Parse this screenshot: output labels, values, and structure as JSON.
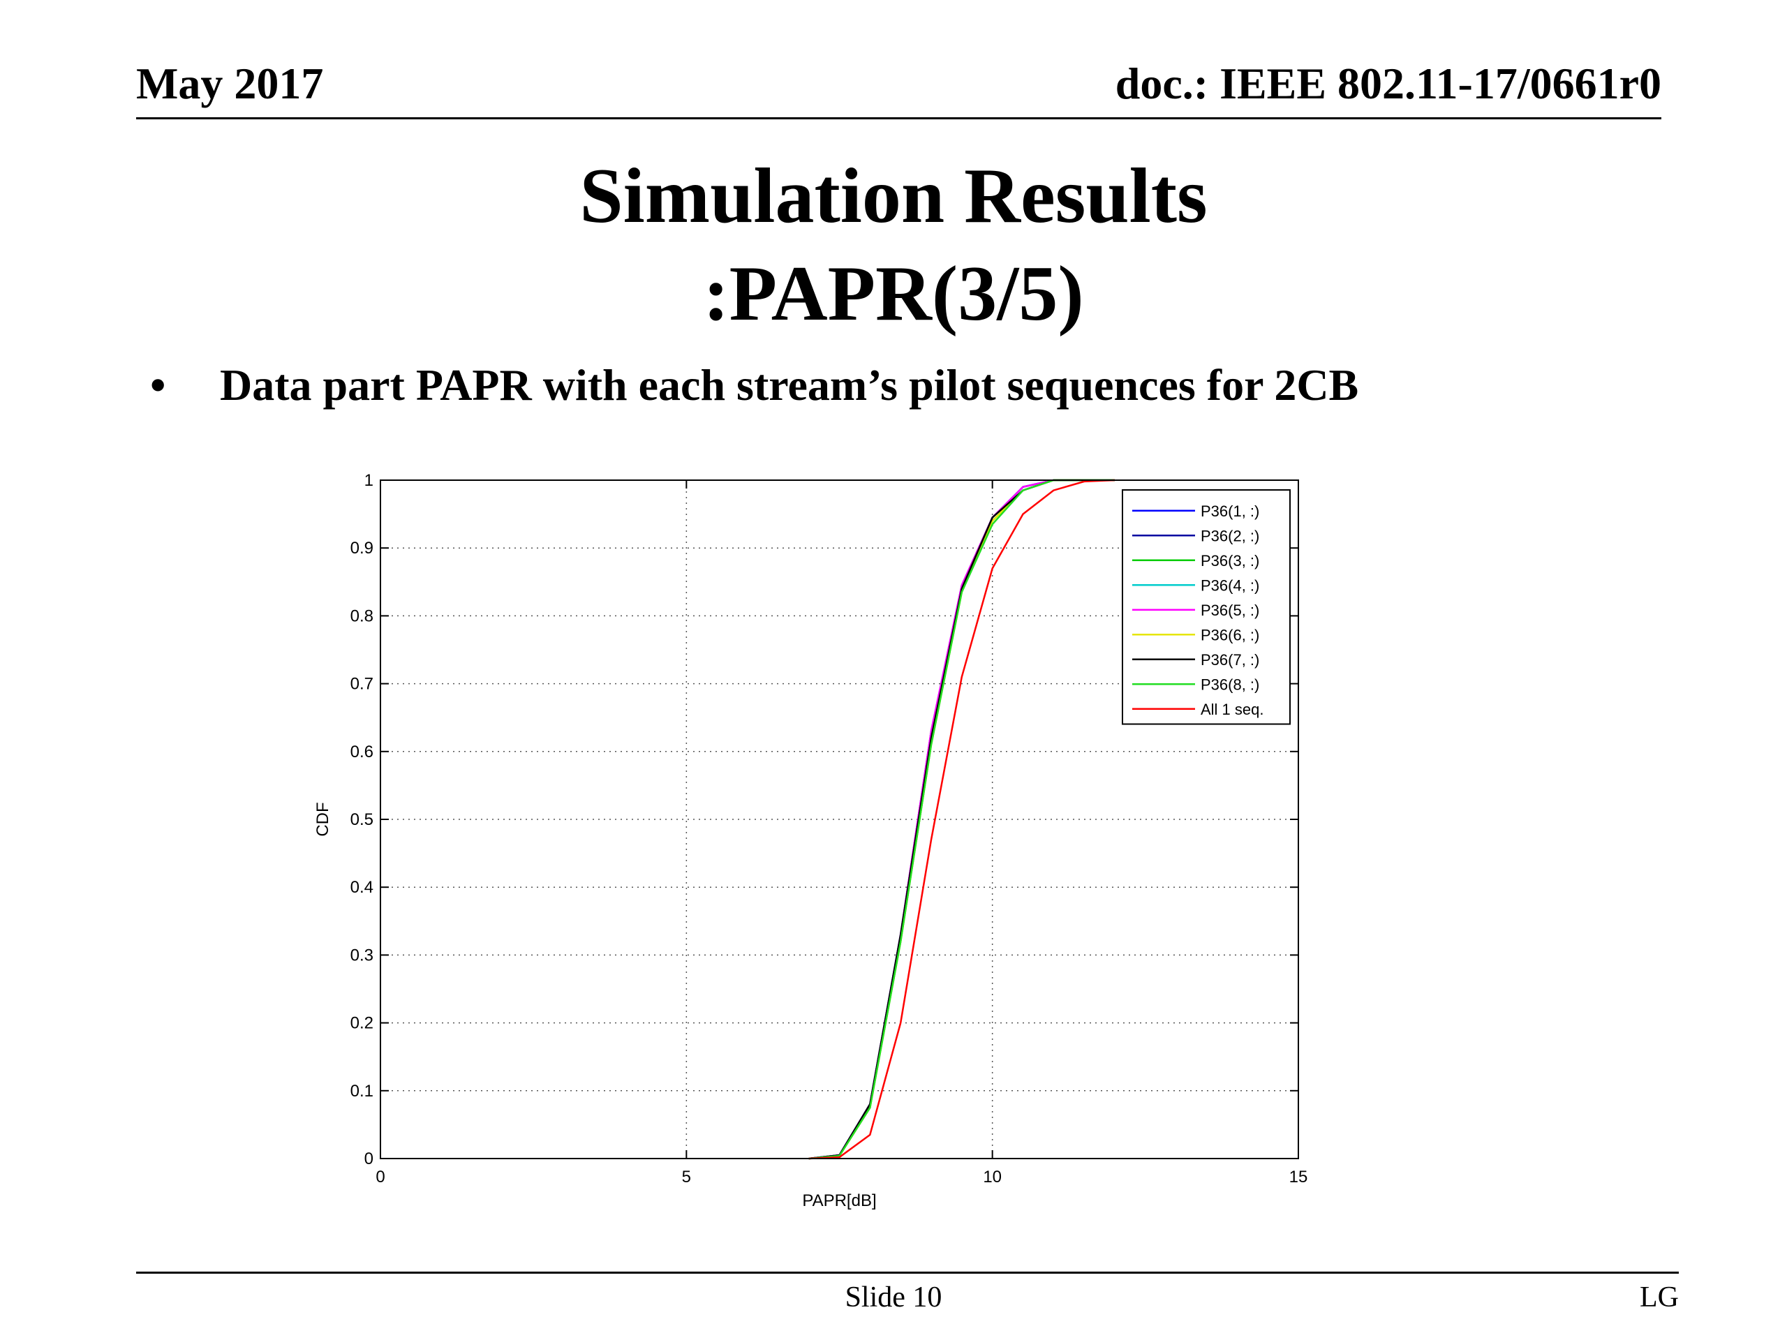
{
  "header": {
    "date": "May 2017",
    "doc": "doc.: IEEE 802.11-17/0661r0"
  },
  "title": {
    "line1": "Simulation Results",
    "line2": ":PAPR(3/5)"
  },
  "bullet": {
    "symbol": "•",
    "text": "Data part PAPR with each stream’s pilot sequences for 2CB"
  },
  "footer": {
    "slide": "Slide 10",
    "org": "LG"
  },
  "chart_data": {
    "type": "line",
    "xlabel": "PAPR[dB]",
    "ylabel": "CDF",
    "xlim": [
      0,
      15
    ],
    "ylim": [
      0,
      1
    ],
    "xticks": [
      0,
      5,
      10,
      15
    ],
    "yticks": [
      0,
      0.1,
      0.2,
      0.3,
      0.4,
      0.5,
      0.6,
      0.7,
      0.8,
      0.9,
      1
    ],
    "grid": true,
    "legend_position": "top-right",
    "series": [
      {
        "name": "P36(1, :)",
        "color": "#0000ff",
        "x": [
          7.0,
          7.5,
          8.0,
          8.5,
          9.0,
          9.5,
          10.0,
          10.5,
          11.0,
          11.5,
          12.0
        ],
        "y": [
          0,
          0.005,
          0.08,
          0.33,
          0.62,
          0.84,
          0.945,
          0.99,
          1.0,
          1.0,
          1.0
        ]
      },
      {
        "name": "P36(2, :)",
        "color": "#0000a0",
        "x": [
          7.0,
          7.5,
          8.0,
          8.5,
          9.0,
          9.5,
          10.0,
          10.5,
          11.0,
          11.5,
          12.0
        ],
        "y": [
          0,
          0.005,
          0.08,
          0.33,
          0.63,
          0.845,
          0.945,
          0.99,
          1.0,
          1.0,
          1.0
        ]
      },
      {
        "name": "P36(3, :)",
        "color": "#00cc00",
        "x": [
          7.0,
          7.5,
          8.0,
          8.5,
          9.0,
          9.5,
          10.0,
          10.5,
          11.0,
          11.5,
          12.0
        ],
        "y": [
          0,
          0.004,
          0.075,
          0.32,
          0.61,
          0.835,
          0.94,
          0.985,
          1.0,
          1.0,
          1.0
        ]
      },
      {
        "name": "P36(4, :)",
        "color": "#00cccc",
        "x": [
          7.0,
          7.5,
          8.0,
          8.5,
          9.0,
          9.5,
          10.0,
          10.5,
          11.0,
          11.5,
          12.0
        ],
        "y": [
          0,
          0.005,
          0.08,
          0.33,
          0.62,
          0.84,
          0.945,
          0.99,
          1.0,
          1.0,
          1.0
        ]
      },
      {
        "name": "P36(5, :)",
        "color": "#ff00ff",
        "x": [
          7.0,
          7.5,
          8.0,
          8.5,
          9.0,
          9.5,
          10.0,
          10.5,
          11.0,
          11.5,
          12.0
        ],
        "y": [
          0,
          0.005,
          0.08,
          0.33,
          0.63,
          0.845,
          0.945,
          0.99,
          1.0,
          1.0,
          1.0
        ]
      },
      {
        "name": "P36(6, :)",
        "color": "#e6e600",
        "x": [
          7.0,
          7.5,
          8.0,
          8.5,
          9.0,
          9.5,
          10.0,
          10.5,
          11.0,
          11.5,
          12.0
        ],
        "y": [
          0,
          0.004,
          0.075,
          0.32,
          0.61,
          0.835,
          0.94,
          0.985,
          1.0,
          1.0,
          1.0
        ]
      },
      {
        "name": "P36(7, :)",
        "color": "#000000",
        "x": [
          7.0,
          7.5,
          8.0,
          8.5,
          9.0,
          9.5,
          10.0,
          10.5,
          11.0,
          11.5,
          12.0
        ],
        "y": [
          0,
          0.005,
          0.08,
          0.33,
          0.62,
          0.84,
          0.945,
          0.985,
          1.0,
          1.0,
          1.0
        ]
      },
      {
        "name": "P36(8, :)",
        "color": "#22dd22",
        "x": [
          7.0,
          7.5,
          8.0,
          8.5,
          9.0,
          9.5,
          10.0,
          10.5,
          11.0,
          11.5,
          12.0
        ],
        "y": [
          0,
          0.004,
          0.075,
          0.32,
          0.61,
          0.835,
          0.935,
          0.985,
          1.0,
          1.0,
          1.0
        ]
      },
      {
        "name": "All 1 seq.",
        "color": "#ff0000",
        "x": [
          7.0,
          7.5,
          8.0,
          8.5,
          9.0,
          9.5,
          10.0,
          10.5,
          11.0,
          11.5,
          12.0
        ],
        "y": [
          0,
          0.002,
          0.035,
          0.2,
          0.47,
          0.71,
          0.87,
          0.95,
          0.985,
          0.998,
          1.0
        ]
      }
    ]
  }
}
